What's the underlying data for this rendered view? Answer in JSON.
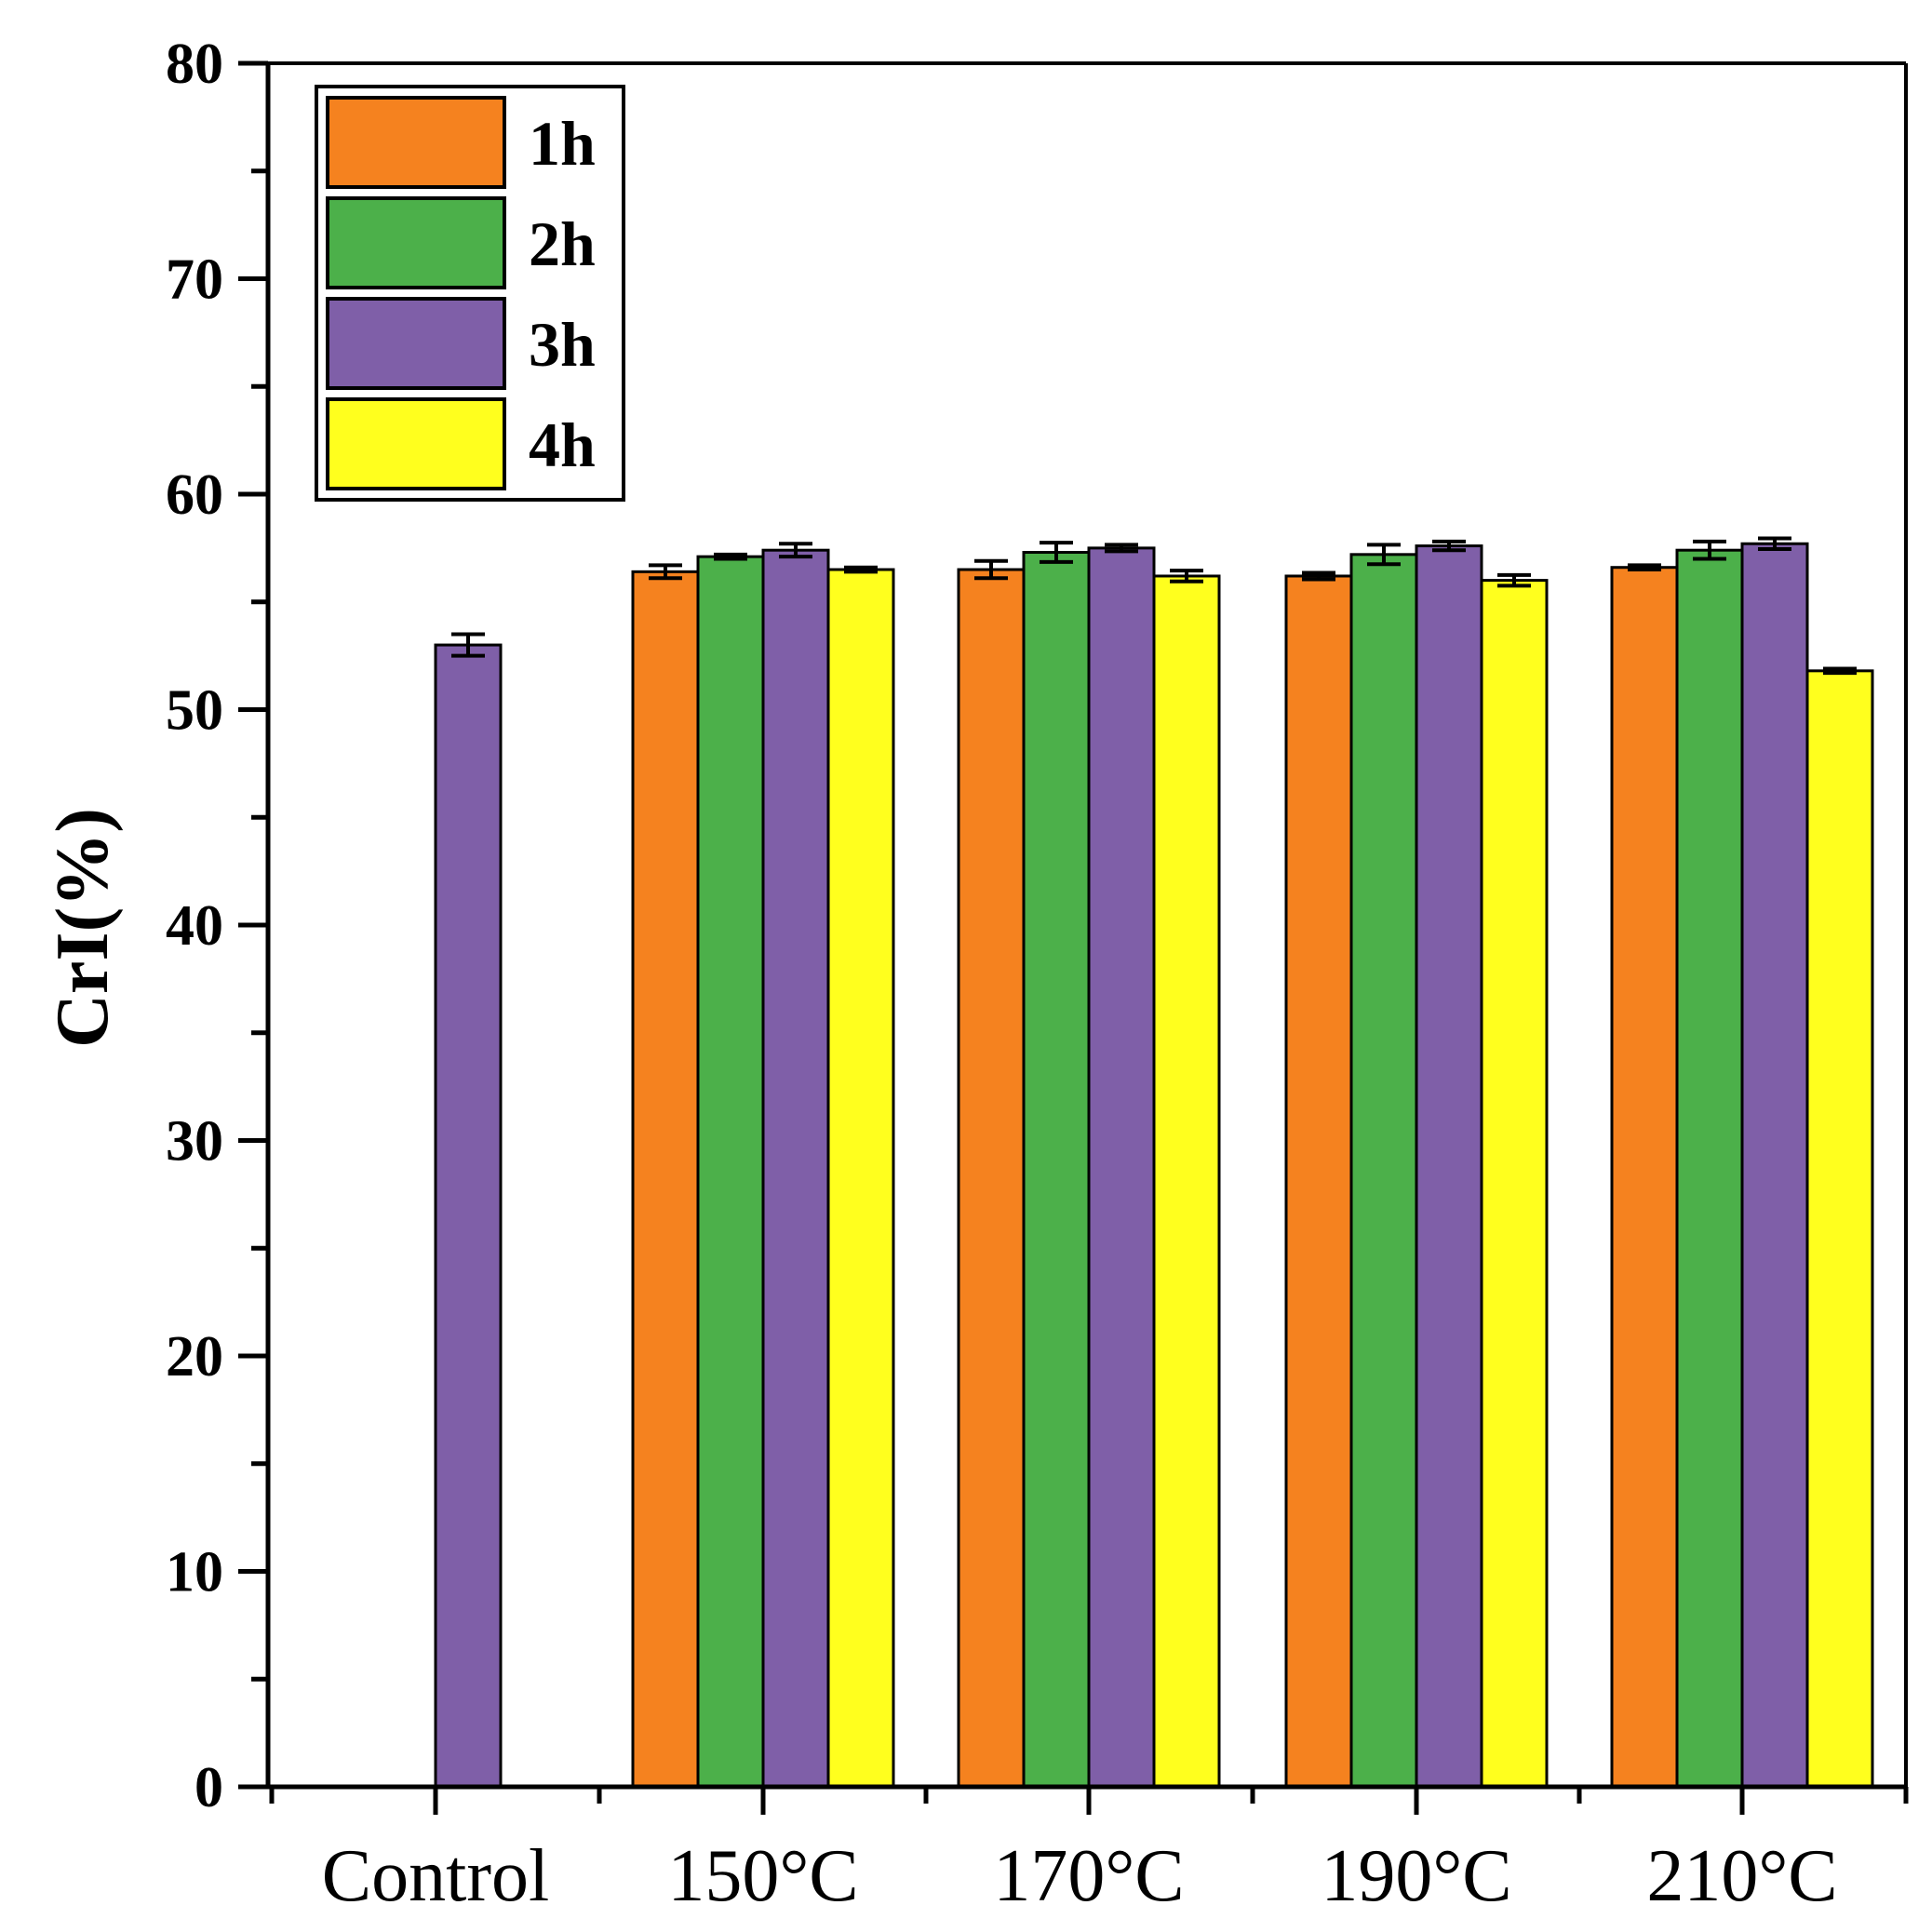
{
  "chart_data": {
    "type": "bar",
    "title": "",
    "xlabel": "",
    "ylabel": "CrI(%)",
    "ylim": [
      0,
      80
    ],
    "yticks": [
      0,
      10,
      20,
      30,
      40,
      50,
      60,
      70,
      80
    ],
    "categories": [
      "Control",
      "150°C",
      "170°C",
      "190°C",
      "210°C"
    ],
    "series": [
      {
        "name": "1h",
        "color": "#F5821F",
        "values": [
          null,
          56.4,
          56.5,
          56.2,
          56.6
        ],
        "errors": [
          null,
          0.3,
          0.4,
          0.15,
          0.1
        ]
      },
      {
        "name": "2h",
        "color": "#4CB04A",
        "values": [
          null,
          57.1,
          57.3,
          57.2,
          57.4
        ],
        "errors": [
          null,
          0.1,
          0.45,
          0.45,
          0.4
        ]
      },
      {
        "name": "3h",
        "color": "#7F5FA8",
        "values": [
          53.0,
          57.4,
          57.5,
          57.6,
          57.7
        ],
        "errors": [
          0.5,
          0.3,
          0.15,
          0.2,
          0.25
        ]
      },
      {
        "name": "4h",
        "color": "#FFFF1E",
        "values": [
          null,
          56.5,
          56.2,
          56.0,
          51.8
        ],
        "errors": [
          null,
          0.1,
          0.25,
          0.25,
          0.1
        ]
      }
    ],
    "legend_position": "top-left",
    "error_bars": true
  }
}
